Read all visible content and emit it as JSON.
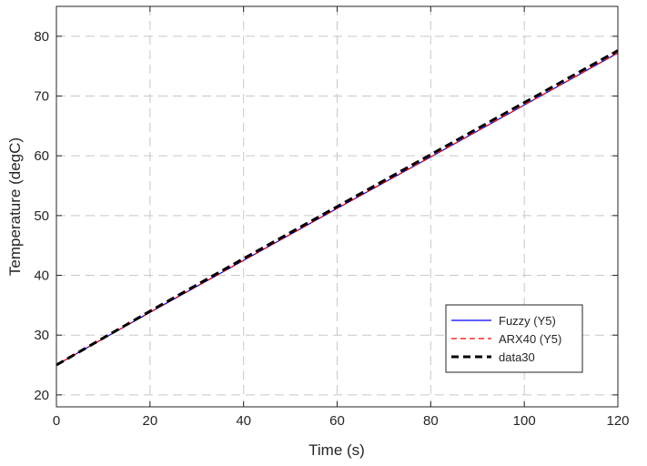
{
  "chart_data": {
    "type": "line",
    "title": "",
    "xlabel": "Time (s)",
    "ylabel": "Temperature (degC)",
    "xlim": [
      0,
      120
    ],
    "ylim": [
      18,
      85
    ],
    "xticks": [
      0,
      20,
      40,
      60,
      80,
      100,
      120
    ],
    "yticks": [
      20,
      30,
      40,
      50,
      60,
      70,
      80
    ],
    "grid": true,
    "legend_position": "bottom-right",
    "series": [
      {
        "name": "Fuzzy (Y5)",
        "color": "#0000ff",
        "style": "solid",
        "x": [
          0,
          20,
          40,
          60,
          80,
          100,
          120
        ],
        "y": [
          25.0,
          33.8,
          42.5,
          51.2,
          59.8,
          68.5,
          77.2
        ]
      },
      {
        "name": "ARX40 (Y5)",
        "color": "#ff0000",
        "style": "dashed",
        "x": [
          0,
          20,
          40,
          60,
          80,
          100,
          120
        ],
        "y": [
          25.0,
          33.8,
          42.5,
          51.2,
          59.8,
          68.5,
          77.2
        ]
      },
      {
        "name": "data30",
        "color": "#000000",
        "style": "thick-dashed",
        "x": [
          0,
          20,
          40,
          60,
          80,
          100,
          120
        ],
        "y": [
          25.0,
          34.0,
          42.8,
          51.5,
          60.2,
          68.9,
          77.6
        ]
      }
    ]
  }
}
